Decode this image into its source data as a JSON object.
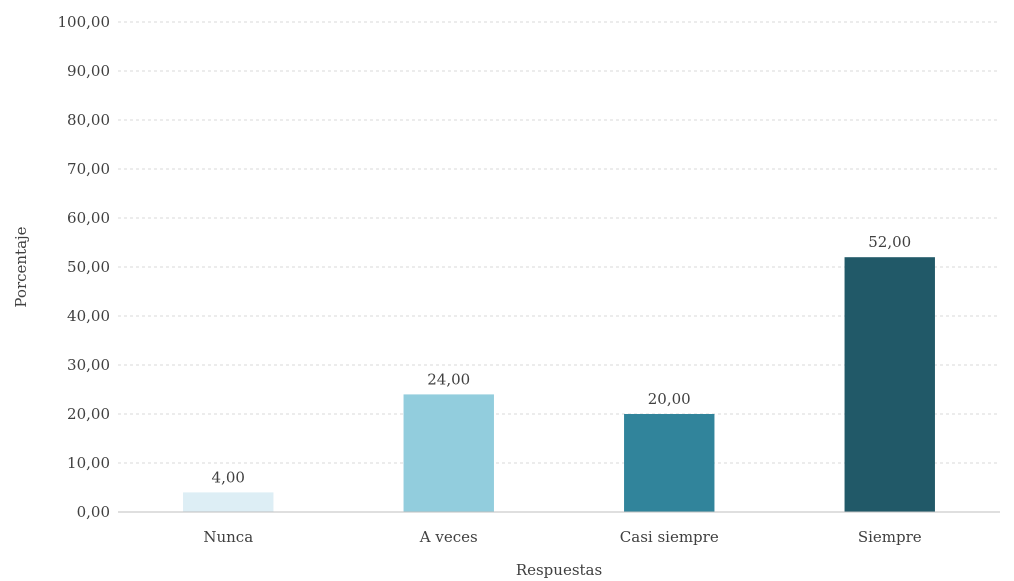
{
  "chart_data": {
    "type": "bar",
    "categories": [
      "Nunca",
      "A veces",
      "Casi siempre",
      "Siempre"
    ],
    "values": [
      4.0,
      24.0,
      20.0,
      52.0
    ],
    "value_labels": [
      "4,00",
      "24,00",
      "20,00",
      "52,00"
    ],
    "colors": [
      "#ddeef5",
      "#92cddd",
      "#31849b",
      "#215968"
    ],
    "xlabel": "Respuestas",
    "ylabel": "Porcentaje",
    "ylim": [
      0,
      100
    ],
    "yticks": [
      0,
      10,
      20,
      30,
      40,
      50,
      60,
      70,
      80,
      90,
      100
    ],
    "ytick_labels": [
      "0,00",
      "10,00",
      "20,00",
      "30,00",
      "40,00",
      "50,00",
      "60,00",
      "70,00",
      "80,00",
      "90,00",
      "100,00"
    ],
    "grid": true,
    "legend": "none"
  }
}
